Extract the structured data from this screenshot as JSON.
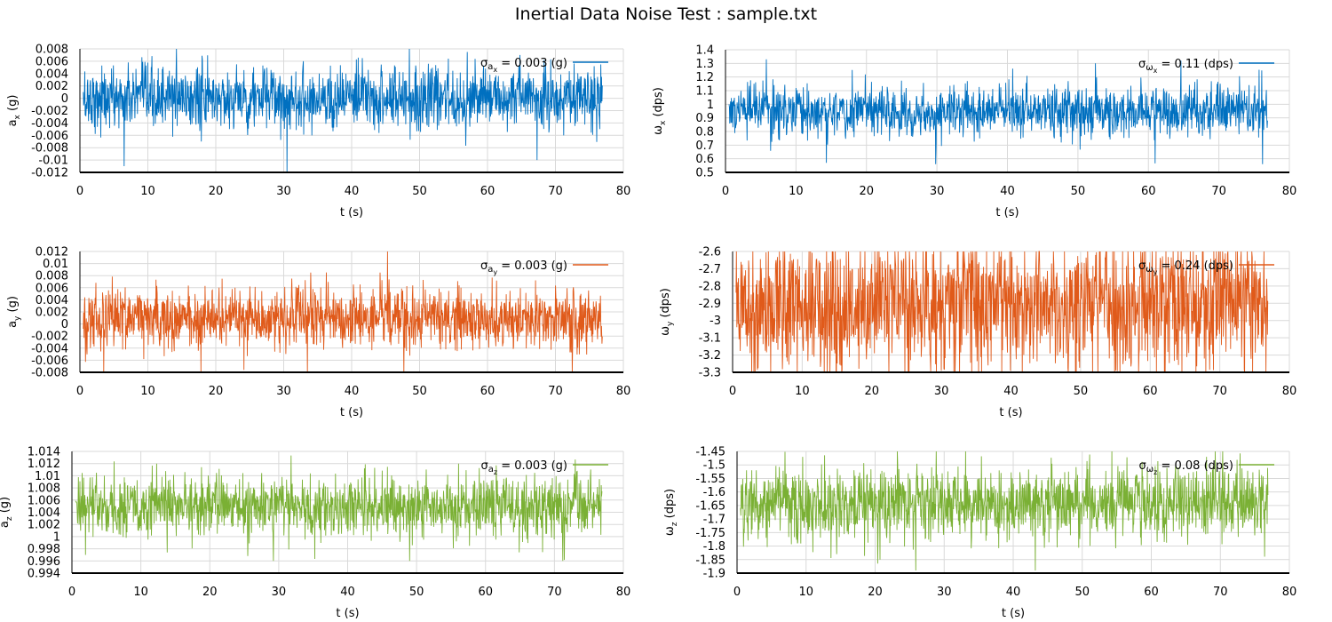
{
  "title": "Inertial Data Noise Test : sample.txt",
  "chart_data": [
    {
      "type": "line",
      "id": "ax",
      "ylabel_main": "a",
      "ylabel_sub": "x",
      "ylabel_unit": " (g)",
      "xlabel": "t (s)",
      "xlim": [
        0,
        80
      ],
      "xticks": [
        0,
        10,
        20,
        30,
        40,
        50,
        60,
        70,
        80
      ],
      "ylim": [
        -0.012,
        0.008
      ],
      "yticks": [
        -0.012,
        -0.01,
        -0.008,
        -0.006,
        -0.004,
        -0.002,
        0,
        0.002,
        0.004,
        0.006,
        0.008
      ],
      "ytick_labels": [
        "-0.012",
        "-0.01",
        "-0.008",
        "-0.006",
        "-0.004",
        "-0.002",
        "0",
        "0.002",
        "0.004",
        "0.006",
        "0.008"
      ],
      "grid": true,
      "legend_position": "top-right",
      "color": "#0070c0",
      "series": [
        {
          "legend_pre": "σ",
          "legend_sub1": "a",
          "legend_sub2": "x",
          "legend_post": " = 0.003 (g)",
          "t_range": [
            0.5,
            76.9
          ],
          "mean": 0.0,
          "sigma": 0.003,
          "x": [
            0.5,
            6.5,
            14.2,
            30.5,
            48.5,
            57,
            67.3,
            76.5
          ],
          "y": [
            0.001,
            -0.011,
            0.008,
            -0.012,
            0.008,
            0.0075,
            -0.01,
            -0.005
          ]
        }
      ]
    },
    {
      "type": "line",
      "id": "wx",
      "ylabel_main": "ω",
      "ylabel_sub": "x",
      "ylabel_unit": " (dps)",
      "xlabel": "t (s)",
      "xlim": [
        0,
        80
      ],
      "xticks": [
        0,
        10,
        20,
        30,
        40,
        50,
        60,
        70,
        80
      ],
      "ylim": [
        0.5,
        1.4
      ],
      "yticks": [
        0.5,
        0.6,
        0.7,
        0.8,
        0.9,
        1,
        1.1,
        1.2,
        1.3,
        1.4
      ],
      "ytick_labels": [
        "0.5",
        "0.6",
        "0.7",
        "0.8",
        "0.9",
        "1",
        "1.1",
        "1.2",
        "1.3",
        "1.4"
      ],
      "grid": true,
      "legend_position": "top-right",
      "color": "#0070c0",
      "series": [
        {
          "legend_pre": "σ",
          "legend_sub1": "ω",
          "legend_sub2": "x",
          "legend_post": " = 0.11 (dps)",
          "t_range": [
            0.5,
            76.9
          ],
          "mean": 0.95,
          "sigma": 0.11,
          "x": [
            0.5,
            5.8,
            14.3,
            29.8,
            52.5,
            64.6,
            76.2
          ],
          "y": [
            1.0,
            1.33,
            0.57,
            0.56,
            1.3,
            1.32,
            0.56
          ]
        }
      ]
    },
    {
      "type": "line",
      "id": "ay",
      "ylabel_main": "a",
      "ylabel_sub": "y",
      "ylabel_unit": " (g)",
      "xlabel": "t (s)",
      "xlim": [
        0,
        80
      ],
      "xticks": [
        0,
        10,
        20,
        30,
        40,
        50,
        60,
        70,
        80
      ],
      "ylim": [
        -0.008,
        0.012
      ],
      "yticks": [
        -0.008,
        -0.006,
        -0.004,
        -0.002,
        0,
        0.002,
        0.004,
        0.006,
        0.008,
        0.01,
        0.012
      ],
      "ytick_labels": [
        "-0.008",
        "-0.006",
        "-0.004",
        "-0.002",
        "0",
        "0.002",
        "0.004",
        "0.006",
        "0.008",
        "0.01",
        "0.012"
      ],
      "grid": true,
      "legend_position": "top-right",
      "color": "#e05a1a",
      "series": [
        {
          "legend_pre": "σ",
          "legend_sub1": "a",
          "legend_sub2": "y",
          "legend_post": " = 0.003 (g)",
          "t_range": [
            0.5,
            76.9
          ],
          "mean": 0.001,
          "sigma": 0.003,
          "x": [
            1.0,
            3.5,
            17.8,
            33.5,
            45.3,
            47.7,
            72.5
          ],
          "y": [
            -0.004,
            -0.008,
            -0.008,
            -0.008,
            0.012,
            -0.008,
            -0.008
          ]
        }
      ]
    },
    {
      "type": "line",
      "id": "wy",
      "ylabel_main": "ω",
      "ylabel_sub": "y",
      "ylabel_unit": " (dps)",
      "xlabel": "t (s)",
      "xlim": [
        0,
        80
      ],
      "xticks": [
        0,
        10,
        20,
        30,
        40,
        50,
        60,
        70,
        80
      ],
      "ylim": [
        -3.3,
        -2.6
      ],
      "yticks": [
        -3.3,
        -3.2,
        -3.1,
        -3,
        -2.9,
        -2.8,
        -2.7,
        -2.6
      ],
      "ytick_labels": [
        "-3.3",
        "-3.2",
        "-3.1",
        "-3",
        "-2.9",
        "-2.8",
        "-2.7",
        "-2.6"
      ],
      "grid": true,
      "legend_position": "top-right",
      "color": "#e05a1a",
      "series": [
        {
          "legend_pre": "σ",
          "legend_sub1": "ω",
          "legend_sub2": "y",
          "legend_post": " = 0.24 (dps)",
          "t_range": [
            0.5,
            76.9
          ],
          "mean": -2.9,
          "sigma": 0.24,
          "x": [
            1.2,
            67.8,
            76.2
          ],
          "y": [
            -2.66,
            -3.22,
            -3.15
          ]
        }
      ]
    },
    {
      "type": "line",
      "id": "az",
      "ylabel_main": "a",
      "ylabel_sub": "z",
      "ylabel_unit": " (g)",
      "xlabel": "t (s)",
      "xlim": [
        0,
        80
      ],
      "xticks": [
        0,
        10,
        20,
        30,
        40,
        50,
        60,
        70,
        80
      ],
      "ylim": [
        0.994,
        1.014
      ],
      "yticks": [
        0.994,
        0.996,
        0.998,
        1,
        1.002,
        1.004,
        1.006,
        1.008,
        1.01,
        1.012,
        1.014
      ],
      "ytick_labels": [
        "0.994",
        "0.996",
        "0.998",
        "1",
        "1.002",
        "1.004",
        "1.006",
        "1.008",
        "1.01",
        "1.012",
        "1.014"
      ],
      "grid": true,
      "legend_position": "top-right",
      "color": "#7ab034",
      "series": [
        {
          "legend_pre": "σ",
          "legend_sub1": "a",
          "legend_sub2": "z",
          "legend_post": " = 0.003 (g)",
          "t_range": [
            0.5,
            76.9
          ],
          "mean": 1.005,
          "sigma": 0.003,
          "x": [
            2.0,
            12.3,
            29.2,
            49.0,
            56.1,
            71.2
          ],
          "y": [
            0.997,
            1.012,
            0.996,
            0.996,
            1.012,
            0.996
          ]
        }
      ]
    },
    {
      "type": "line",
      "id": "wz",
      "ylabel_main": "ω",
      "ylabel_sub": "z",
      "ylabel_unit": " (dps)",
      "xlabel": "t (s)",
      "xlim": [
        0,
        80
      ],
      "xticks": [
        0,
        10,
        20,
        30,
        40,
        50,
        60,
        70,
        80
      ],
      "ylim": [
        -1.9,
        -1.45
      ],
      "yticks": [
        -1.9,
        -1.85,
        -1.8,
        -1.75,
        -1.7,
        -1.65,
        -1.6,
        -1.55,
        -1.5,
        -1.45
      ],
      "ytick_labels": [
        "-1.9",
        "-1.85",
        "-1.8",
        "-1.75",
        "-1.7",
        "-1.65",
        "-1.6",
        "-1.55",
        "-1.5",
        "-1.45"
      ],
      "grid": true,
      "legend_position": "top-right",
      "color": "#7ab034",
      "series": [
        {
          "legend_pre": "σ",
          "legend_sub1": "ω",
          "legend_sub2": "z",
          "legend_post": " = 0.08 (dps)",
          "t_range": [
            0.5,
            76.9
          ],
          "mean": -1.645,
          "sigma": 0.08,
          "x": [
            2.8,
            9.5,
            20.7,
            25.9,
            43.2,
            68.0
          ],
          "y": [
            -1.52,
            -1.47,
            -1.85,
            -1.89,
            -1.89,
            -1.47
          ]
        }
      ]
    }
  ]
}
